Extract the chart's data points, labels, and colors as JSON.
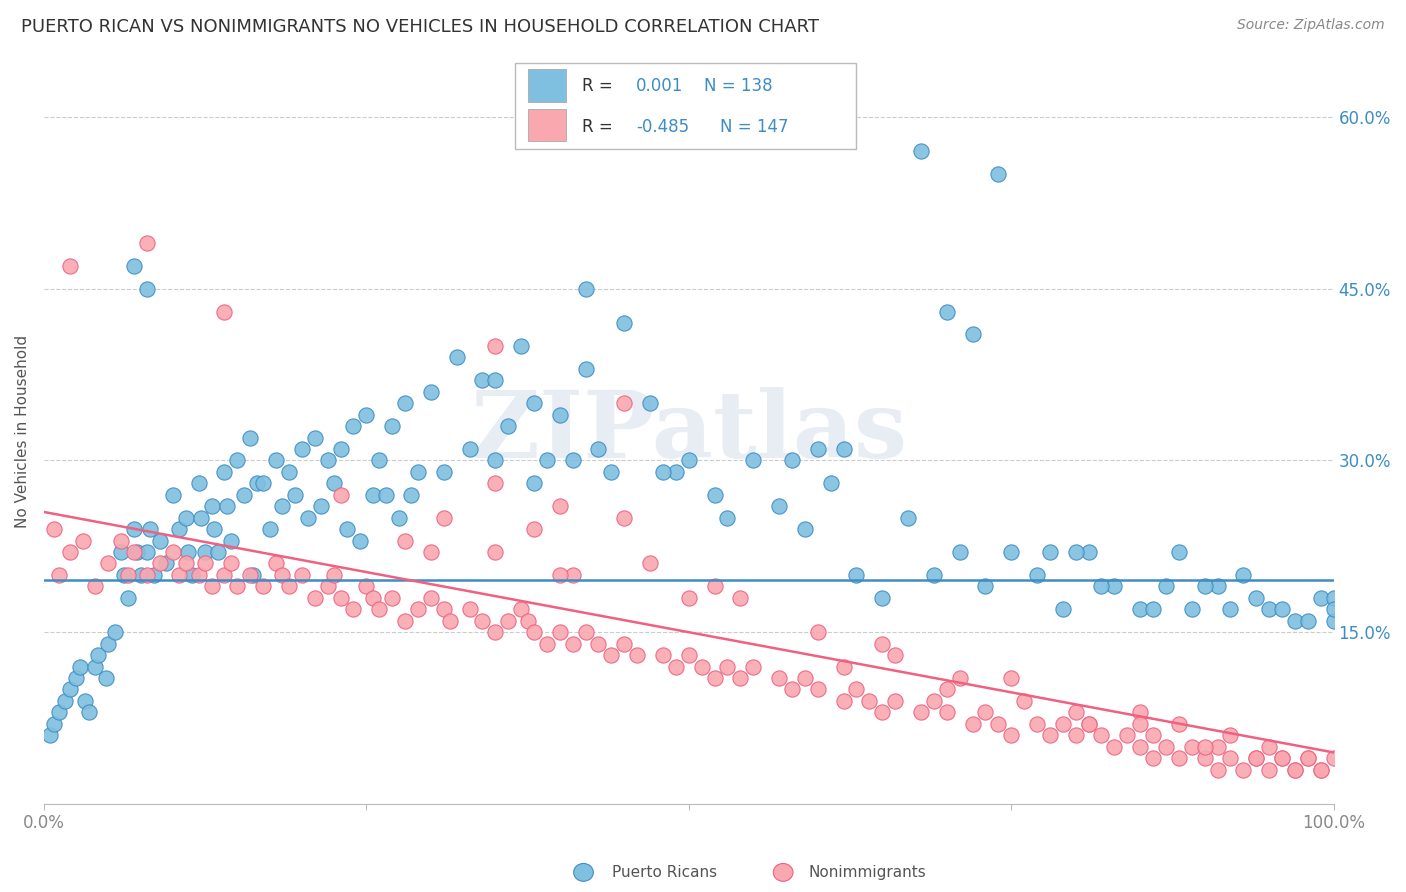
{
  "title": "PUERTO RICAN VS NONIMMIGRANTS NO VEHICLES IN HOUSEHOLD CORRELATION CHART",
  "source": "Source: ZipAtlas.com",
  "ylabel": "No Vehicles in Household",
  "xlim": [
    0.0,
    1.0
  ],
  "ylim": [
    0.0,
    0.65
  ],
  "blue_color": "#7fbfdf",
  "pink_color": "#f9a8b0",
  "blue_line_color": "#3d8dc4",
  "pink_line_color": "#f06080",
  "legend_text_color": "#3d8dc4",
  "blue_hline_y": 0.196,
  "pink_line_x": [
    0.0,
    1.0
  ],
  "pink_line_y": [
    0.255,
    0.045
  ],
  "watermark": "ZIPatlas",
  "grid_color": "#cccccc",
  "spine_color": "#bbbbbb",
  "tick_color": "#888888",
  "blue_scatter_x": [
    0.005,
    0.008,
    0.012,
    0.016,
    0.02,
    0.025,
    0.028,
    0.032,
    0.035,
    0.04,
    0.042,
    0.048,
    0.05,
    0.055,
    0.06,
    0.062,
    0.065,
    0.07,
    0.072,
    0.075,
    0.08,
    0.082,
    0.085,
    0.09,
    0.095,
    0.1,
    0.105,
    0.11,
    0.112,
    0.115,
    0.12,
    0.122,
    0.125,
    0.13,
    0.132,
    0.135,
    0.14,
    0.142,
    0.145,
    0.15,
    0.155,
    0.16,
    0.162,
    0.165,
    0.17,
    0.175,
    0.18,
    0.185,
    0.19,
    0.195,
    0.2,
    0.205,
    0.21,
    0.215,
    0.22,
    0.225,
    0.23,
    0.235,
    0.24,
    0.245,
    0.25,
    0.255,
    0.26,
    0.265,
    0.27,
    0.275,
    0.28,
    0.285,
    0.29,
    0.3,
    0.31,
    0.32,
    0.33,
    0.34,
    0.35,
    0.36,
    0.37,
    0.38,
    0.39,
    0.4,
    0.42,
    0.43,
    0.45,
    0.47,
    0.49,
    0.5,
    0.52,
    0.53,
    0.55,
    0.57,
    0.59,
    0.61,
    0.63,
    0.65,
    0.67,
    0.69,
    0.71,
    0.73,
    0.75,
    0.77,
    0.79,
    0.81,
    0.83,
    0.85,
    0.87,
    0.89,
    0.91,
    0.93,
    0.95,
    0.97,
    0.99,
    1.0,
    0.48,
    0.35,
    0.6,
    0.38,
    0.41,
    0.44,
    0.58,
    0.62,
    0.07,
    0.08,
    0.42,
    0.78,
    0.82,
    0.86,
    0.88,
    0.9,
    0.92,
    0.94,
    0.96,
    0.98,
    1.0,
    1.0,
    0.74,
    0.68,
    0.7,
    0.72,
    0.8
  ],
  "blue_scatter_y": [
    0.06,
    0.07,
    0.08,
    0.09,
    0.1,
    0.11,
    0.12,
    0.09,
    0.08,
    0.12,
    0.13,
    0.11,
    0.14,
    0.15,
    0.22,
    0.2,
    0.18,
    0.24,
    0.22,
    0.2,
    0.22,
    0.24,
    0.2,
    0.23,
    0.21,
    0.27,
    0.24,
    0.25,
    0.22,
    0.2,
    0.28,
    0.25,
    0.22,
    0.26,
    0.24,
    0.22,
    0.29,
    0.26,
    0.23,
    0.3,
    0.27,
    0.32,
    0.2,
    0.28,
    0.28,
    0.24,
    0.3,
    0.26,
    0.29,
    0.27,
    0.31,
    0.25,
    0.32,
    0.26,
    0.3,
    0.28,
    0.31,
    0.24,
    0.33,
    0.23,
    0.34,
    0.27,
    0.3,
    0.27,
    0.33,
    0.25,
    0.35,
    0.27,
    0.29,
    0.36,
    0.29,
    0.39,
    0.31,
    0.37,
    0.37,
    0.33,
    0.4,
    0.35,
    0.3,
    0.34,
    0.38,
    0.31,
    0.42,
    0.35,
    0.29,
    0.3,
    0.27,
    0.25,
    0.3,
    0.26,
    0.24,
    0.28,
    0.2,
    0.18,
    0.25,
    0.2,
    0.22,
    0.19,
    0.22,
    0.2,
    0.17,
    0.22,
    0.19,
    0.17,
    0.19,
    0.17,
    0.19,
    0.2,
    0.17,
    0.16,
    0.18,
    0.16,
    0.29,
    0.3,
    0.31,
    0.28,
    0.3,
    0.29,
    0.3,
    0.31,
    0.47,
    0.45,
    0.45,
    0.22,
    0.19,
    0.17,
    0.22,
    0.19,
    0.17,
    0.18,
    0.17,
    0.16,
    0.18,
    0.17,
    0.55,
    0.57,
    0.43,
    0.41,
    0.22
  ],
  "pink_scatter_x": [
    0.008,
    0.012,
    0.02,
    0.03,
    0.04,
    0.05,
    0.06,
    0.065,
    0.07,
    0.08,
    0.09,
    0.1,
    0.105,
    0.11,
    0.12,
    0.125,
    0.13,
    0.14,
    0.145,
    0.15,
    0.16,
    0.17,
    0.18,
    0.185,
    0.19,
    0.2,
    0.21,
    0.22,
    0.225,
    0.23,
    0.24,
    0.25,
    0.255,
    0.26,
    0.27,
    0.28,
    0.29,
    0.3,
    0.31,
    0.315,
    0.33,
    0.34,
    0.35,
    0.36,
    0.37,
    0.375,
    0.38,
    0.39,
    0.4,
    0.41,
    0.42,
    0.43,
    0.44,
    0.45,
    0.46,
    0.48,
    0.49,
    0.5,
    0.51,
    0.52,
    0.53,
    0.54,
    0.55,
    0.57,
    0.58,
    0.59,
    0.6,
    0.62,
    0.63,
    0.64,
    0.65,
    0.66,
    0.68,
    0.69,
    0.7,
    0.72,
    0.73,
    0.74,
    0.75,
    0.77,
    0.78,
    0.79,
    0.8,
    0.81,
    0.82,
    0.83,
    0.84,
    0.85,
    0.86,
    0.87,
    0.88,
    0.89,
    0.9,
    0.91,
    0.92,
    0.93,
    0.94,
    0.95,
    0.96,
    0.97,
    0.98,
    0.99,
    1.0,
    0.23,
    0.31,
    0.38,
    0.47,
    0.52,
    0.28,
    0.35,
    0.41,
    0.54,
    0.6,
    0.66,
    0.71,
    0.76,
    0.81,
    0.86,
    0.91,
    0.96,
    0.99,
    0.08,
    0.14,
    0.35,
    0.45,
    0.3,
    0.4,
    0.5,
    0.65,
    0.75,
    0.85,
    0.92,
    0.02,
    0.88,
    0.95,
    0.98,
    0.62,
    0.7,
    0.8,
    0.85,
    0.9,
    0.94,
    0.97,
    0.35,
    0.4,
    0.45
  ],
  "pink_scatter_y": [
    0.24,
    0.2,
    0.22,
    0.23,
    0.19,
    0.21,
    0.23,
    0.2,
    0.22,
    0.2,
    0.21,
    0.22,
    0.2,
    0.21,
    0.2,
    0.21,
    0.19,
    0.2,
    0.21,
    0.19,
    0.2,
    0.19,
    0.21,
    0.2,
    0.19,
    0.2,
    0.18,
    0.19,
    0.2,
    0.18,
    0.17,
    0.19,
    0.18,
    0.17,
    0.18,
    0.16,
    0.17,
    0.18,
    0.17,
    0.16,
    0.17,
    0.16,
    0.15,
    0.16,
    0.17,
    0.16,
    0.15,
    0.14,
    0.15,
    0.14,
    0.15,
    0.14,
    0.13,
    0.14,
    0.13,
    0.13,
    0.12,
    0.13,
    0.12,
    0.11,
    0.12,
    0.11,
    0.12,
    0.11,
    0.1,
    0.11,
    0.1,
    0.09,
    0.1,
    0.09,
    0.08,
    0.09,
    0.08,
    0.09,
    0.08,
    0.07,
    0.08,
    0.07,
    0.06,
    0.07,
    0.06,
    0.07,
    0.06,
    0.07,
    0.06,
    0.05,
    0.06,
    0.05,
    0.04,
    0.05,
    0.04,
    0.05,
    0.04,
    0.03,
    0.04,
    0.03,
    0.04,
    0.03,
    0.04,
    0.03,
    0.04,
    0.03,
    0.04,
    0.27,
    0.25,
    0.24,
    0.21,
    0.19,
    0.23,
    0.22,
    0.2,
    0.18,
    0.15,
    0.13,
    0.11,
    0.09,
    0.07,
    0.06,
    0.05,
    0.04,
    0.03,
    0.49,
    0.43,
    0.4,
    0.35,
    0.22,
    0.2,
    0.18,
    0.14,
    0.11,
    0.08,
    0.06,
    0.47,
    0.07,
    0.05,
    0.04,
    0.12,
    0.1,
    0.08,
    0.07,
    0.05,
    0.04,
    0.03,
    0.28,
    0.26,
    0.25
  ]
}
